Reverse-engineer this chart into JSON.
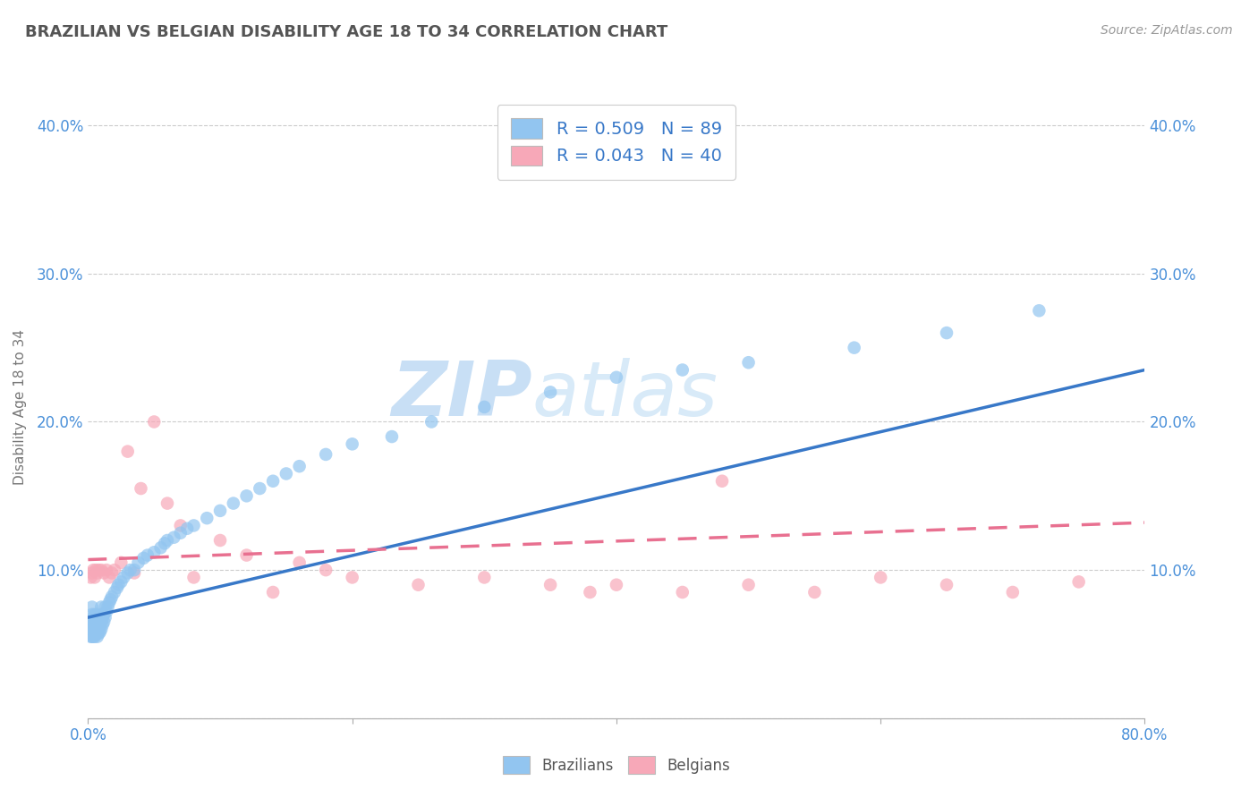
{
  "title": "BRAZILIAN VS BELGIAN DISABILITY AGE 18 TO 34 CORRELATION CHART",
  "source_text": "Source: ZipAtlas.com",
  "ylabel": "Disability Age 18 to 34",
  "xlim": [
    0.0,
    0.8
  ],
  "ylim": [
    0.0,
    0.42
  ],
  "xticks": [
    0.0,
    0.2,
    0.4,
    0.6,
    0.8
  ],
  "xticklabels": [
    "0.0%",
    "",
    "",
    "",
    "80.0%"
  ],
  "yticks": [
    0.0,
    0.1,
    0.2,
    0.3,
    0.4
  ],
  "yticklabels_left": [
    "",
    "10.0%",
    "20.0%",
    "30.0%",
    "40.0%"
  ],
  "yticklabels_right": [
    "",
    "10.0%",
    "20.0%",
    "30.0%",
    "40.0%"
  ],
  "brazil_color": "#92C5F0",
  "belgium_color": "#F7A8B8",
  "brazil_line_color": "#3878C8",
  "belgium_line_color": "#E87090",
  "brazil_R": 0.509,
  "brazil_N": 89,
  "belgium_R": 0.043,
  "belgium_N": 40,
  "watermark_zip": "ZIP",
  "watermark_atlas": "atlas",
  "background_color": "#FFFFFF",
  "grid_color": "#CCCCCC",
  "title_color": "#555555",
  "tick_color": "#4A90D9",
  "brazil_scatter_x": [
    0.002,
    0.002,
    0.002,
    0.003,
    0.003,
    0.003,
    0.003,
    0.003,
    0.004,
    0.004,
    0.004,
    0.004,
    0.004,
    0.005,
    0.005,
    0.005,
    0.005,
    0.005,
    0.005,
    0.006,
    0.006,
    0.006,
    0.006,
    0.007,
    0.007,
    0.007,
    0.007,
    0.007,
    0.008,
    0.008,
    0.008,
    0.008,
    0.009,
    0.009,
    0.009,
    0.01,
    0.01,
    0.01,
    0.01,
    0.011,
    0.011,
    0.012,
    0.012,
    0.013,
    0.013,
    0.014,
    0.015,
    0.016,
    0.017,
    0.018,
    0.02,
    0.022,
    0.023,
    0.025,
    0.027,
    0.03,
    0.032,
    0.035,
    0.038,
    0.042,
    0.045,
    0.05,
    0.055,
    0.058,
    0.06,
    0.065,
    0.07,
    0.075,
    0.08,
    0.09,
    0.1,
    0.11,
    0.12,
    0.13,
    0.14,
    0.15,
    0.16,
    0.18,
    0.2,
    0.23,
    0.26,
    0.3,
    0.35,
    0.4,
    0.45,
    0.5,
    0.58,
    0.65,
    0.72
  ],
  "brazil_scatter_y": [
    0.055,
    0.06,
    0.065,
    0.055,
    0.06,
    0.065,
    0.07,
    0.075,
    0.055,
    0.06,
    0.062,
    0.065,
    0.068,
    0.055,
    0.058,
    0.06,
    0.063,
    0.066,
    0.07,
    0.057,
    0.06,
    0.063,
    0.067,
    0.055,
    0.058,
    0.062,
    0.065,
    0.07,
    0.057,
    0.06,
    0.064,
    0.068,
    0.058,
    0.062,
    0.067,
    0.06,
    0.065,
    0.07,
    0.075,
    0.063,
    0.068,
    0.065,
    0.07,
    0.068,
    0.075,
    0.072,
    0.075,
    0.078,
    0.08,
    0.082,
    0.085,
    0.088,
    0.09,
    0.092,
    0.095,
    0.098,
    0.1,
    0.1,
    0.105,
    0.108,
    0.11,
    0.112,
    0.115,
    0.118,
    0.12,
    0.122,
    0.125,
    0.128,
    0.13,
    0.135,
    0.14,
    0.145,
    0.15,
    0.155,
    0.16,
    0.165,
    0.17,
    0.178,
    0.185,
    0.19,
    0.2,
    0.21,
    0.22,
    0.23,
    0.235,
    0.24,
    0.25,
    0.26,
    0.275
  ],
  "belgium_scatter_x": [
    0.002,
    0.003,
    0.004,
    0.005,
    0.006,
    0.007,
    0.008,
    0.01,
    0.012,
    0.014,
    0.016,
    0.018,
    0.02,
    0.025,
    0.03,
    0.035,
    0.04,
    0.05,
    0.06,
    0.07,
    0.08,
    0.1,
    0.12,
    0.14,
    0.16,
    0.18,
    0.2,
    0.25,
    0.3,
    0.35,
    0.4,
    0.45,
    0.5,
    0.55,
    0.6,
    0.65,
    0.7,
    0.75,
    0.48,
    0.38
  ],
  "belgium_scatter_y": [
    0.095,
    0.098,
    0.1,
    0.095,
    0.1,
    0.098,
    0.1,
    0.1,
    0.098,
    0.1,
    0.095,
    0.098,
    0.1,
    0.105,
    0.18,
    0.098,
    0.155,
    0.2,
    0.145,
    0.13,
    0.095,
    0.12,
    0.11,
    0.085,
    0.105,
    0.1,
    0.095,
    0.09,
    0.095,
    0.09,
    0.09,
    0.085,
    0.09,
    0.085,
    0.095,
    0.09,
    0.085,
    0.092,
    0.16,
    0.085
  ]
}
